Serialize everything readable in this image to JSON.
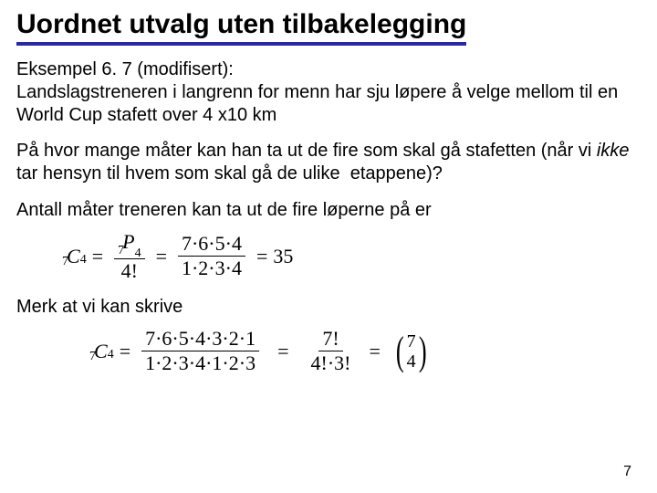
{
  "colors": {
    "title_underline": "#2a2aa0",
    "text": "#000000",
    "bg": "#ffffff"
  },
  "title": "Uordnet utvalg uten tilbakelegging",
  "para1_line1": "Eksempel 6. 7 (modifisert):",
  "para1_line2": "Landslagstreneren i langrenn for menn har sju løpere å velge mellom til en World Cup stafett over 4 x10 km",
  "para2_a": "På hvor mange måter kan han ta ut de fire som skal gå stafetten (når vi ",
  "para2_em": "ikke",
  "para2_b": " tar hensyn til hvem som skal gå de ulike  etappene)?",
  "para3": "Antall måter treneren kan ta ut de fire løperne på er",
  "para4": "Merk at vi kan skrive",
  "math1": {
    "lhs_pre": "7",
    "lhs_C": "C",
    "lhs_post": "4",
    "f1_num_pre": "7",
    "f1_num_P": "P",
    "f1_num_post": "4",
    "f1_den": "4!",
    "f2_num": "7·6·5·4",
    "f2_den": "1·2·3·4",
    "result": "35"
  },
  "math2": {
    "lhs_pre": "7",
    "lhs_C": "C",
    "lhs_post": "4",
    "f1_num": "7·6·5·4·3·2·1",
    "f1_den": "1·2·3·4·1·2·3",
    "f2_num": "7!",
    "f2_den": "4!·3!",
    "binom_top": "7",
    "binom_bot": "4"
  },
  "page_number": "7"
}
